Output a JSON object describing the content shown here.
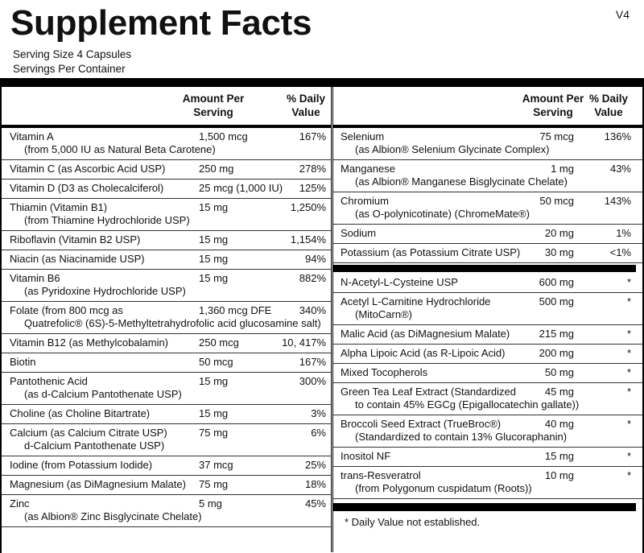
{
  "header": {
    "title": "Supplement Facts",
    "version": "V4",
    "serving_size": "Serving Size  4 Capsules",
    "servings_per_container": "Servings Per Container"
  },
  "left": {
    "amount_header": "Amount Per Serving",
    "dv_header": "% Daily Value",
    "rows": [
      {
        "name": "Vitamin A",
        "detail": "(from 5,000 IU as Natural Beta Carotene)",
        "amount": "1,500 mcg",
        "dv": "167%"
      },
      {
        "name": "Vitamin C (as Ascorbic Acid USP)",
        "amount": "250 mg",
        "dv": "278%"
      },
      {
        "name": "Vitamin D (D3 as Cholecalciferol)",
        "amount": "25 mcg (1,000 IU)",
        "dv": "125%"
      },
      {
        "name": "Thiamin (Vitamin B1)",
        "detail": "(from Thiamine Hydrochloride USP)",
        "amount": "15 mg",
        "dv": "1,250%"
      },
      {
        "name": "Riboflavin (Vitamin B2 USP)",
        "amount": "15 mg",
        "dv": "1,154%"
      },
      {
        "name": "Niacin (as Niacinamide USP)",
        "amount": "15 mg",
        "dv": "94%"
      },
      {
        "name": "Vitamin B6",
        "detail": "(as Pyridoxine Hydrochloride USP)",
        "amount": "15 mg",
        "dv": "882%"
      },
      {
        "name": "Folate (from 800 mcg as",
        "detail": "Quatrefolic® (6S)-5-Methyltetrahydrofolic acid glucosamine salt)",
        "amount": "1,360 mcg DFE",
        "dv": "340%"
      },
      {
        "name": "Vitamin B12 (as Methylcobalamin)",
        "amount": "250 mcg",
        "dv": "10, 417%"
      },
      {
        "name": "Biotin",
        "amount": "50 mcg",
        "dv": "167%"
      },
      {
        "name": "Pantothenic Acid",
        "detail": "(as d-Calcium Pantothenate USP)",
        "amount": "15 mg",
        "dv": "300%"
      },
      {
        "name": "Choline (as Choline Bitartrate)",
        "amount": "15 mg",
        "dv": "3%"
      },
      {
        "name": "Calcium (as Calcium Citrate USP)",
        "detail": "d-Calcium Pantothenate USP)",
        "amount": "75 mg",
        "dv": "6%"
      },
      {
        "name": "Iodine (from Potassium Iodide)",
        "amount": "37 mcg",
        "dv": "25%"
      },
      {
        "name": "Magnesium (as DiMagnesium Malate)",
        "amount": "75 mg",
        "dv": "18%"
      },
      {
        "name": "Zinc",
        "detail": "(as Albion® Zinc Bisglycinate Chelate)",
        "amount": "5 mg",
        "dv": "45%"
      }
    ]
  },
  "right": {
    "amount_header": "Amount Per Serving",
    "dv_header": "% Daily Value",
    "sections": [
      [
        {
          "name": "Selenium",
          "detail": "(as Albion® Selenium Glycinate Complex)",
          "amount": "75 mcg",
          "dv": "136%"
        },
        {
          "name": "Manganese",
          "detail": "(as Albion® Manganese Bisglycinate Chelate)",
          "amount": "1 mg",
          "dv": "43%"
        },
        {
          "name": "Chromium",
          "detail": "(as O-polynicotinate) (ChromeMate®)",
          "amount": "50 mcg",
          "dv": "143%"
        },
        {
          "name": "Sodium",
          "amount": "20 mg",
          "dv": "1%"
        },
        {
          "name": "Potassium (as Potassium Citrate USP)",
          "amount": "30 mg",
          "dv": "<1%"
        }
      ],
      [
        {
          "name": "N-Acetyl-L-Cysteine USP",
          "amount": "600 mg",
          "dv": "*"
        },
        {
          "name": "Acetyl L-Carnitine Hydrochloride",
          "detail": "(MitoCarn®)",
          "amount": "500 mg",
          "dv": "*"
        },
        {
          "name": "Malic Acid (as DiMagnesium Malate)",
          "amount": "215 mg",
          "dv": "*"
        },
        {
          "name": "Alpha Lipoic Acid (as R-Lipoic Acid)",
          "amount": "200 mg",
          "dv": "*"
        },
        {
          "name": "Mixed Tocopherols",
          "amount": "50 mg",
          "dv": "*"
        },
        {
          "name": "Green Tea Leaf Extract (Standardized",
          "detail": "to contain 45% EGCg (Epigallocatechin gallate))",
          "amount": "45 mg",
          "dv": "*"
        },
        {
          "name": "Broccoli Seed Extract (TrueBroc®)",
          "detail": "(Standardized to contain 13% Glucoraphanin)",
          "amount": "40 mg",
          "dv": "*"
        },
        {
          "name": "Inositol NF",
          "amount": "15 mg",
          "dv": "*"
        },
        {
          "name": "trans-Resveratrol",
          "detail": "(from Polygonum cuspidatum (Roots))",
          "amount": "10 mg",
          "dv": "*"
        }
      ]
    ]
  },
  "footnote": "* Daily Value not established."
}
